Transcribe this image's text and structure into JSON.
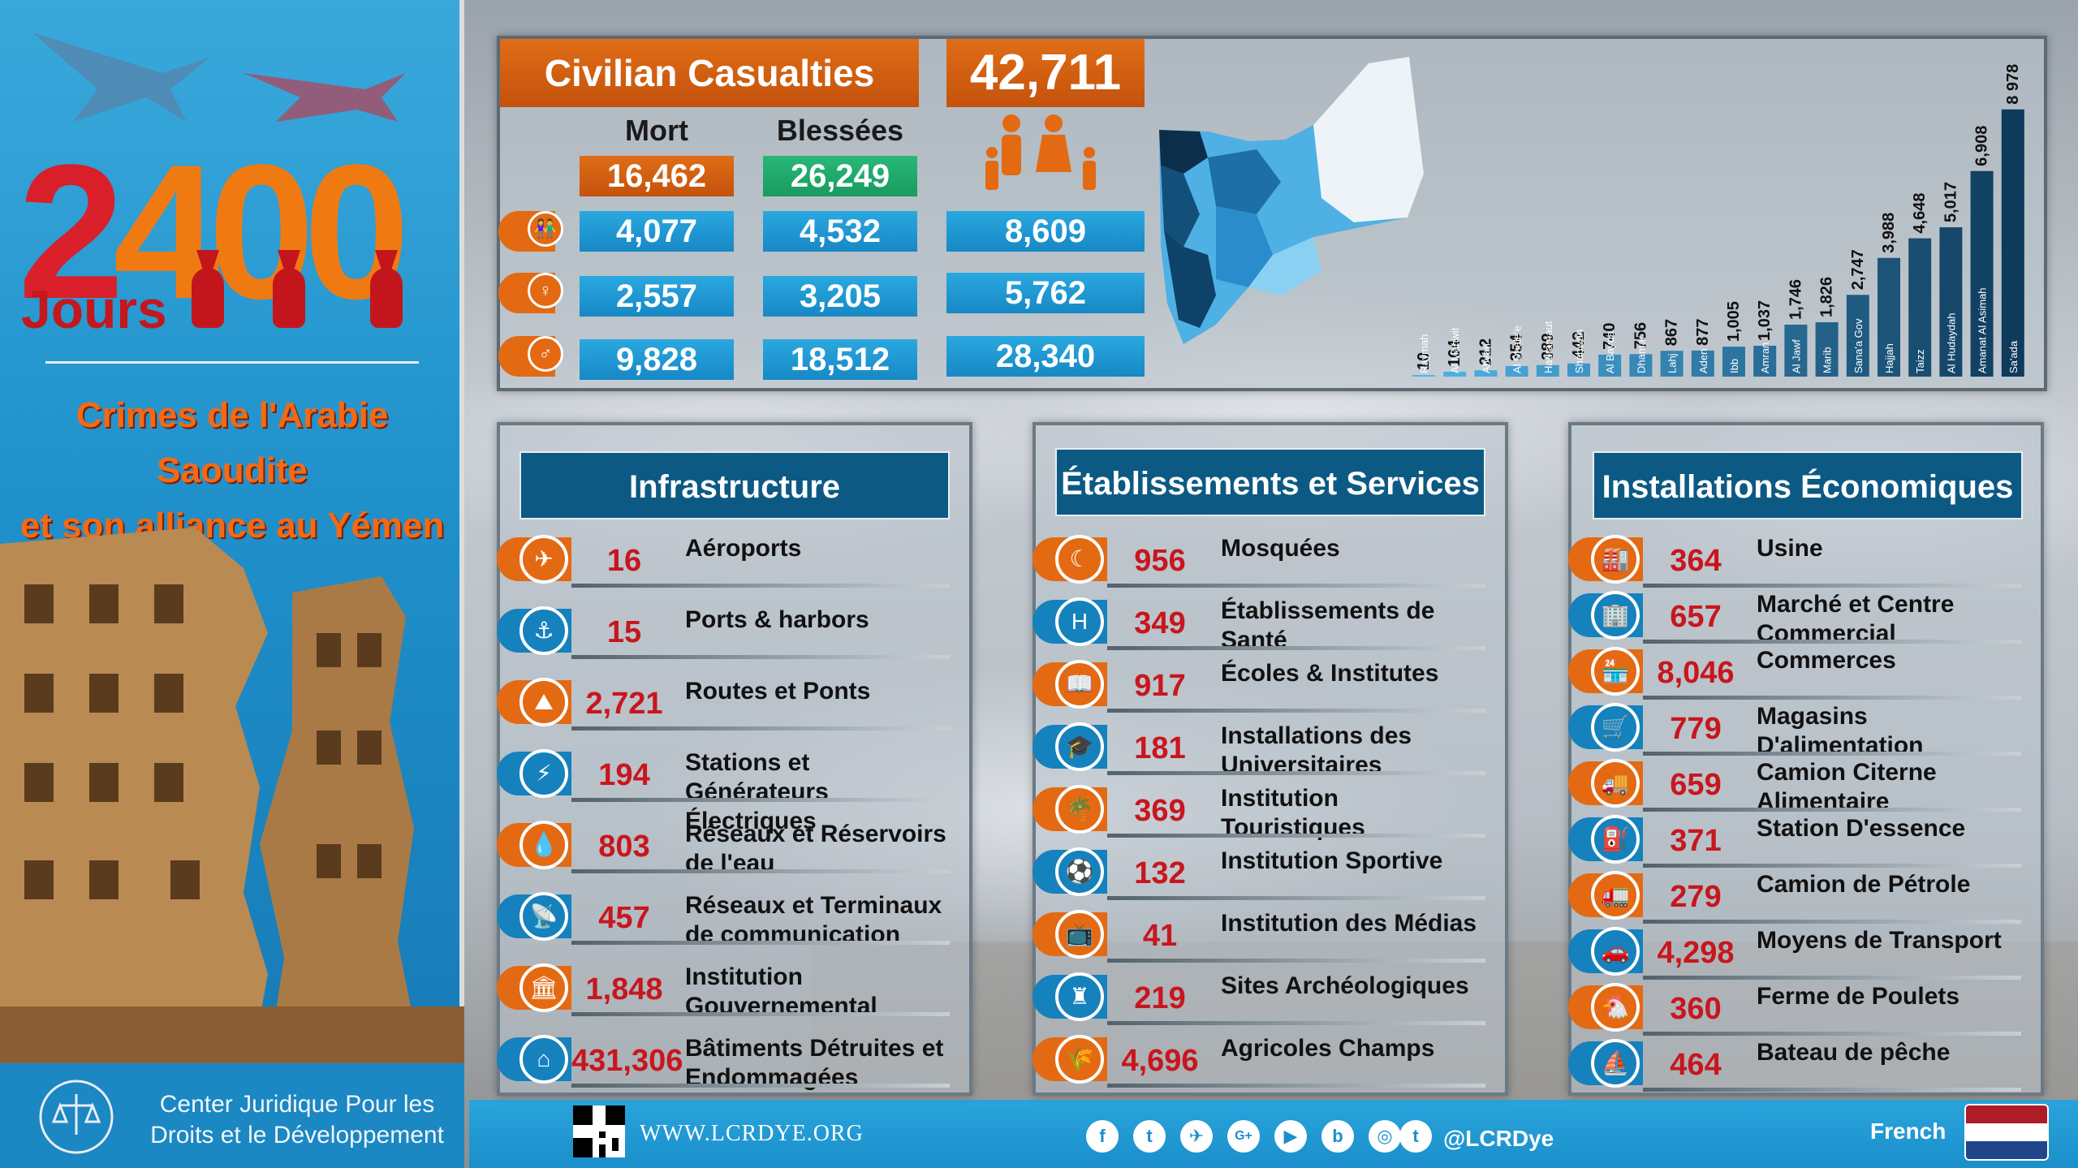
{
  "header": {
    "days_number": "2400",
    "days_label": "Jours",
    "subtitle_line1": "Crimes de l'Arabie Saoudite",
    "subtitle_line2": "et son alliance au Yémen"
  },
  "casualties": {
    "title": "Civilian Casualties",
    "total": "42,711",
    "col_dead": "Mort",
    "col_injured": "Blessées",
    "dead_total": "16,462",
    "injured_total": "26,249",
    "rows": [
      {
        "icon": "children-icon",
        "dead": "4,077",
        "injured": "4,532",
        "total": "8,609"
      },
      {
        "icon": "woman-icon",
        "dead": "2,557",
        "injured": "3,205",
        "total": "5,762"
      },
      {
        "icon": "man-icon",
        "dead": "9,828",
        "injured": "18,512",
        "total": "28,340"
      }
    ]
  },
  "chart_data": {
    "type": "bar",
    "categories": [
      "Raymah",
      "Al Mahwit",
      "Abyan",
      "Al Dhale'e",
      "Hadramaut",
      "Shabwah",
      "Al Bayda",
      "Dhamar",
      "Lahj",
      "Aden",
      "Ibb",
      "Amran",
      "Al Jawf",
      "Marib",
      "Sana'a Gov",
      "Hajjah",
      "Taizz",
      "Al Hudaydah",
      "Amanat Al Asimah",
      "Sa'ada"
    ],
    "value_labels": [
      "10",
      "164",
      "212",
      "354",
      "389",
      "442",
      "740",
      "756",
      "867",
      "877",
      "1,005",
      "1,037",
      "1,746",
      "1,826",
      "2,747",
      "3,988",
      "4,648",
      "5,017",
      "6,908",
      "8 978"
    ],
    "values": [
      10,
      164,
      212,
      354,
      389,
      442,
      740,
      756,
      867,
      877,
      1005,
      1037,
      1746,
      1826,
      2747,
      3988,
      4648,
      5017,
      6908,
      8978
    ],
    "title": "",
    "xlabel": "",
    "ylabel": "",
    "ylim": [
      0,
      9000
    ],
    "grid": false,
    "colors": {
      "light": "#4fb6ea",
      "dark": "#0e3a5c"
    }
  },
  "infrastructure": {
    "title": "Infrastructure",
    "items": [
      {
        "icon": "airplane-icon",
        "value": "16",
        "label": "Aéroports",
        "color": "orange"
      },
      {
        "icon": "anchor-icon",
        "value": "15",
        "label": "Ports & harbors",
        "color": "blue"
      },
      {
        "icon": "road-icon",
        "value": "2,721",
        "label": "Routes et Ponts",
        "color": "orange"
      },
      {
        "icon": "power-tower-icon",
        "value": "194",
        "label": "Stations et Générateurs Électriques",
        "color": "blue"
      },
      {
        "icon": "water-icon",
        "value": "803",
        "label": "Réseaux et Réservoirs de l'eau",
        "color": "orange"
      },
      {
        "icon": "satellite-dish-icon",
        "value": "457",
        "label": "Réseaux et Terminaux de communication",
        "color": "blue"
      },
      {
        "icon": "government-building-icon",
        "value": "1,848",
        "label": "Institution Gouvernemental",
        "color": "orange"
      },
      {
        "icon": "house-icon",
        "value": "431,306",
        "label": "Bâtiments Détruites et Endommagées",
        "color": "blue"
      }
    ]
  },
  "services": {
    "title": "Établissements et Services",
    "items": [
      {
        "icon": "mosque-crescent-icon",
        "value": "956",
        "label": "Mosquées",
        "color": "orange"
      },
      {
        "icon": "hospital-icon",
        "value": "349",
        "label": "Établissements de Santé",
        "color": "blue"
      },
      {
        "icon": "school-book-icon",
        "value": "917",
        "label": "Écoles & Institutes",
        "color": "orange"
      },
      {
        "icon": "graduation-cap-icon",
        "value": "181",
        "label": "Installations des Universitaires",
        "color": "blue"
      },
      {
        "icon": "palm-tree-icon",
        "value": "369",
        "label": "Institution Touristiques",
        "color": "orange"
      },
      {
        "icon": "stadium-icon",
        "value": "132",
        "label": "Institution Sportive",
        "color": "blue"
      },
      {
        "icon": "tv-icon",
        "value": "41",
        "label": "Institution des Médias",
        "color": "orange"
      },
      {
        "icon": "tower-icon",
        "value": "219",
        "label": "Sites Archéologiques",
        "color": "blue"
      },
      {
        "icon": "wheat-icon",
        "value": "4,696",
        "label": "Agricoles Champs",
        "color": "orange"
      }
    ]
  },
  "economic": {
    "title": "Installations Économiques",
    "items": [
      {
        "icon": "factory-icon",
        "value": "364",
        "label": "Usine",
        "color": "orange"
      },
      {
        "icon": "building-icon",
        "value": "657",
        "label": "Marché et Centre Commercial",
        "color": "blue"
      },
      {
        "icon": "shops-icon",
        "value": "8,046",
        "label": "Commerces",
        "color": "orange"
      },
      {
        "icon": "food-store-icon",
        "value": "779",
        "label": "Magasins D'alimentation",
        "color": "blue"
      },
      {
        "icon": "food-truck-icon",
        "value": "659",
        "label": "Camion Citerne Alimentaire",
        "color": "orange"
      },
      {
        "icon": "fuel-pump-icon",
        "value": "371",
        "label": "Station D'essence",
        "color": "blue"
      },
      {
        "icon": "tanker-truck-icon",
        "value": "279",
        "label": "Camion de Pétrole",
        "color": "orange"
      },
      {
        "icon": "car-icon",
        "value": "4,298",
        "label": "Moyens de Transport",
        "color": "blue"
      },
      {
        "icon": "chicken-icon",
        "value": "360",
        "label": "Ferme de Poulets",
        "color": "orange"
      },
      {
        "icon": "boat-icon",
        "value": "464",
        "label": "Bateau de pêche",
        "color": "blue"
      }
    ]
  },
  "footer": {
    "org_line1": "Center Juridique Pour les",
    "org_line2": "Droits et le Développement",
    "website": "WWW.LCRDYE.ORG",
    "handle": "@LCRDye",
    "language": "French",
    "social": [
      "f",
      "t",
      "✈",
      "G+",
      "▶",
      "b",
      "◎",
      "t"
    ]
  }
}
